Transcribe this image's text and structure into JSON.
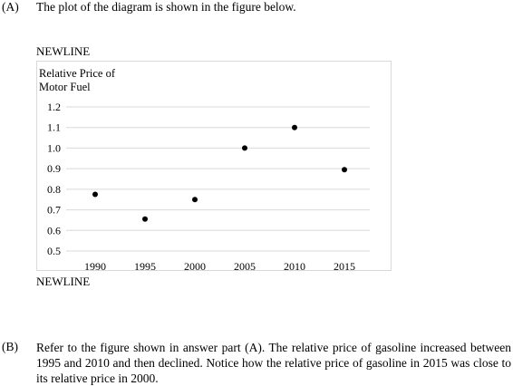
{
  "part_a": {
    "label": "(A)",
    "text": "The plot of the diagram is shown in the figure below."
  },
  "newline_top": "NEWLINE",
  "newline_bottom": "NEWLINE",
  "part_b": {
    "label": "(B)",
    "text": "Refer to the figure shown in answer part (A). The relative price of gasoline increased between 1995 and 2010 and then declined. Notice how the relative price of gasoline in 2015 was close to its relative price in 2000."
  },
  "chart_data": {
    "type": "scatter",
    "ylabel_lines": [
      "Relative Price of",
      "Motor Fuel"
    ],
    "x": [
      1990,
      1995,
      2000,
      2005,
      2010,
      2015
    ],
    "values": [
      0.775,
      0.655,
      0.75,
      1.0,
      1.1,
      0.895
    ],
    "x_ticks": [
      "1990",
      "1995",
      "2000",
      "2005",
      "2010",
      "2015"
    ],
    "y_ticks": [
      "0.5",
      "0.6",
      "0.7",
      "0.8",
      "0.9",
      "1.0",
      "1.1",
      "1.2"
    ],
    "ylim": [
      0.5,
      1.2
    ],
    "grid": true,
    "point_color": "#000000",
    "grid_color": "#d9d9d9"
  }
}
